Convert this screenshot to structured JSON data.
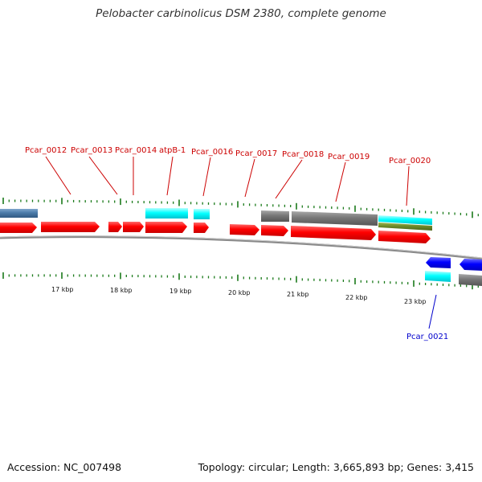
{
  "title": "Pelobacter carbinolicus DSM 2380, complete genome",
  "footer": {
    "accession": "Accession: NC_007498",
    "summary": "Topology: circular; Length: 3,665,893 bp; Genes: 3,415"
  },
  "colors": {
    "cds_forward": "#ff0000",
    "cds_reverse": "#0000ff",
    "rna": "#00ffff",
    "feature_gray": "#777777",
    "feature_steel": "#4a7aa8",
    "feature_olive": "#6e8a2a",
    "gene_label": "#cc0000",
    "gene_label_reverse": "#0000cc",
    "tick": "#1a7a1a",
    "backbone": "#888888"
  },
  "scale_labels": [
    "17 kbp",
    "18 kbp",
    "19 kbp",
    "20 kbp",
    "21 kbp",
    "22 kbp",
    "23 kbp"
  ],
  "gene_labels": [
    "Pcar_0012",
    "Pcar_0013",
    "Pcar_0014",
    "atpB-1",
    "Pcar_0016",
    "Pcar_0017",
    "Pcar_0018",
    "Pcar_0019",
    "Pcar_0020",
    "Pcar_0021"
  ]
}
